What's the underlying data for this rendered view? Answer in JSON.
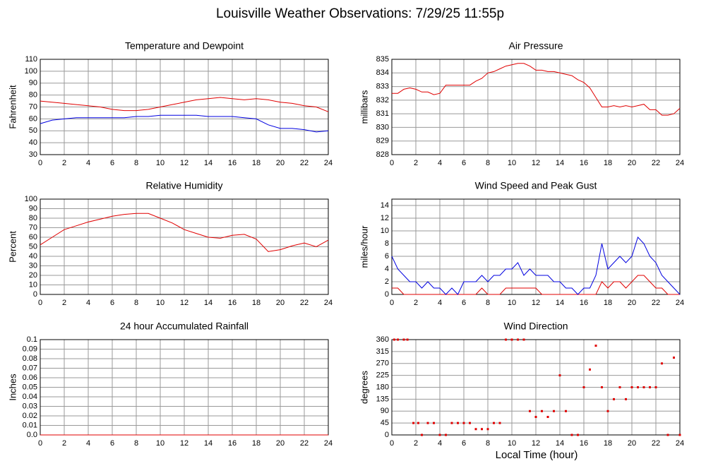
{
  "title": "Louisville Weather Observations: 7/29/25 11:55p",
  "x_label": "Local Time (hour)",
  "chart_data": [
    {
      "type": "line",
      "title": "Temperature and Dewpoint",
      "y_label": "Fahrenheit",
      "x": [
        0,
        1,
        2,
        3,
        4,
        5,
        6,
        7,
        8,
        9,
        10,
        11,
        12,
        13,
        14,
        15,
        16,
        17,
        18,
        19,
        20,
        21,
        22,
        23,
        24
      ],
      "series": [
        {
          "color": "#e00000",
          "values": [
            75,
            74,
            73,
            72,
            71,
            70,
            68,
            67,
            67,
            68,
            70,
            72,
            74,
            76,
            77,
            78,
            77,
            76,
            77,
            76,
            74,
            73,
            71,
            70,
            66
          ]
        },
        {
          "color": "#0000e0",
          "values": [
            56,
            59,
            60,
            61,
            61,
            61,
            61,
            61,
            62,
            62,
            63,
            63,
            63,
            63,
            62,
            62,
            62,
            61,
            60,
            55,
            52,
            52,
            51,
            49,
            50
          ]
        }
      ],
      "xlim": [
        0,
        24
      ],
      "xticks": [
        0,
        2,
        4,
        6,
        8,
        10,
        12,
        14,
        16,
        18,
        20,
        22,
        24
      ],
      "ylim": [
        30,
        110
      ],
      "yticks": [
        30,
        40,
        50,
        60,
        70,
        80,
        90,
        100,
        110
      ],
      "grid": true
    },
    {
      "type": "line",
      "title": "Air Pressure",
      "y_label": "millibars",
      "x": [
        0,
        0.5,
        1,
        1.5,
        2,
        2.5,
        3,
        3.5,
        4,
        4.5,
        5,
        5.5,
        6,
        6.5,
        7,
        7.5,
        8,
        8.5,
        9,
        9.5,
        10,
        10.5,
        11,
        11.5,
        12,
        12.5,
        13,
        13.5,
        14,
        14.5,
        15,
        15.5,
        16,
        16.5,
        17,
        17.5,
        18,
        18.5,
        19,
        19.5,
        20,
        20.5,
        21,
        21.5,
        22,
        22.5,
        23,
        23.5,
        24
      ],
      "series": [
        {
          "color": "#e00000",
          "values": [
            832.5,
            832.5,
            832.8,
            832.9,
            832.8,
            832.6,
            832.6,
            832.4,
            832.5,
            833.1,
            833.1,
            833.1,
            833.1,
            833.1,
            833.4,
            833.6,
            834.0,
            834.1,
            834.3,
            834.5,
            834.6,
            834.7,
            834.7,
            834.5,
            834.2,
            834.2,
            834.1,
            834.1,
            834.0,
            833.9,
            833.8,
            833.5,
            833.3,
            832.9,
            832.2,
            831.5,
            831.5,
            831.6,
            831.5,
            831.6,
            831.5,
            831.6,
            831.7,
            831.3,
            831.3,
            830.9,
            830.9,
            831.0,
            831.4
          ]
        }
      ],
      "xlim": [
        0,
        24
      ],
      "xticks": [
        0,
        2,
        4,
        6,
        8,
        10,
        12,
        14,
        16,
        18,
        20,
        22,
        24
      ],
      "ylim": [
        828,
        835
      ],
      "yticks": [
        828,
        829,
        830,
        831,
        832,
        833,
        834,
        835
      ],
      "grid": true
    },
    {
      "type": "line",
      "title": "Relative Humidity",
      "y_label": "Percent",
      "x": [
        0,
        1,
        2,
        3,
        4,
        5,
        6,
        7,
        8,
        9,
        10,
        11,
        12,
        13,
        14,
        15,
        16,
        17,
        18,
        19,
        20,
        21,
        22,
        23,
        24
      ],
      "series": [
        {
          "color": "#e00000",
          "values": [
            52,
            60,
            68,
            72,
            76,
            79,
            82,
            84,
            85,
            85,
            80,
            75,
            68,
            64,
            60,
            59,
            62,
            63,
            58,
            45,
            47,
            51,
            54,
            50,
            57
          ]
        }
      ],
      "xlim": [
        0,
        24
      ],
      "xticks": [
        0,
        2,
        4,
        6,
        8,
        10,
        12,
        14,
        16,
        18,
        20,
        22,
        24
      ],
      "ylim": [
        0,
        100
      ],
      "yticks": [
        0,
        10,
        20,
        30,
        40,
        50,
        60,
        70,
        80,
        90,
        100
      ],
      "grid": true
    },
    {
      "type": "line",
      "title": "Wind Speed and Peak Gust",
      "y_label": "miles/hour",
      "x": [
        0,
        0.5,
        1,
        1.5,
        2,
        2.5,
        3,
        3.5,
        4,
        4.5,
        5,
        5.5,
        6,
        6.5,
        7,
        7.5,
        8,
        8.5,
        9,
        9.5,
        10,
        10.5,
        11,
        11.5,
        12,
        12.5,
        13,
        13.5,
        14,
        14.5,
        15,
        15.5,
        16,
        16.5,
        17,
        17.5,
        18,
        18.5,
        19,
        19.5,
        20,
        20.5,
        21,
        21.5,
        22,
        22.5,
        23,
        23.5,
        24
      ],
      "series": [
        {
          "color": "#e00000",
          "values": [
            1,
            1,
            0,
            0,
            0,
            0,
            0,
            0,
            0,
            0,
            0,
            0,
            0,
            0,
            0,
            1,
            0,
            0,
            0,
            1,
            1,
            1,
            1,
            1,
            1,
            0,
            0,
            0,
            0,
            0,
            0,
            0,
            0,
            0,
            0,
            2,
            1,
            2,
            2,
            1,
            2,
            3,
            3,
            2,
            1,
            1,
            0,
            0,
            0
          ]
        },
        {
          "color": "#0000e0",
          "values": [
            6,
            4,
            3,
            2,
            2,
            1,
            2,
            1,
            1,
            0,
            1,
            0,
            2,
            2,
            2,
            3,
            2,
            3,
            3,
            4,
            4,
            5,
            3,
            4,
            3,
            3,
            3,
            2,
            2,
            1,
            1,
            0,
            1,
            1,
            3,
            8,
            4,
            5,
            6,
            5,
            6,
            9,
            8,
            6,
            5,
            3,
            2,
            1,
            0
          ]
        }
      ],
      "xlim": [
        0,
        24
      ],
      "xticks": [
        0,
        2,
        4,
        6,
        8,
        10,
        12,
        14,
        16,
        18,
        20,
        22,
        24
      ],
      "ylim": [
        0,
        15
      ],
      "yticks": [
        0,
        2,
        4,
        6,
        8,
        10,
        12,
        14
      ],
      "grid": true
    },
    {
      "type": "line",
      "title": "24 hour Accumulated Rainfall",
      "y_label": "Inches",
      "x": [
        0,
        24
      ],
      "series": [
        {
          "color": "#e00000",
          "values": [
            0,
            0
          ]
        }
      ],
      "xlim": [
        0,
        24
      ],
      "xticks": [
        0,
        2,
        4,
        6,
        8,
        10,
        12,
        14,
        16,
        18,
        20,
        22,
        24
      ],
      "ylim": [
        0,
        0.1
      ],
      "yticks": [
        {
          "value": 0,
          "label": "0.0"
        },
        0.01,
        0.02,
        0.03,
        0.04,
        0.05,
        0.06,
        0.07,
        0.08,
        0.09,
        0.1
      ],
      "grid": true
    },
    {
      "type": "scatter",
      "title": "Wind Direction",
      "y_label": "degrees",
      "x": [
        0.2,
        0.5,
        1.0,
        1.3,
        1.8,
        2.2,
        2.5,
        3,
        3.5,
        4,
        4.5,
        5,
        5.5,
        6,
        6.5,
        7,
        7.5,
        8,
        8.5,
        9,
        9.5,
        10,
        10.5,
        11,
        11.5,
        12,
        12.5,
        13,
        13.5,
        14,
        14.5,
        15,
        15.5,
        16,
        16.5,
        17,
        17.5,
        18,
        18.5,
        19,
        19.5,
        20,
        20.5,
        21,
        21.5,
        22,
        22.5,
        23,
        23.5,
        24
      ],
      "series": [
        {
          "color": "#e00000",
          "values": [
            360,
            360,
            360,
            360,
            45,
            45,
            0,
            45,
            45,
            0,
            0,
            45,
            45,
            45,
            45,
            22,
            22,
            22,
            45,
            45,
            360,
            360,
            360,
            360,
            90,
            68,
            90,
            68,
            90,
            225,
            90,
            0,
            0,
            180,
            247,
            337,
            180,
            90,
            135,
            180,
            135,
            180,
            180,
            180,
            180,
            180,
            270,
            0,
            292,
            0
          ]
        }
      ],
      "xlim": [
        0,
        24
      ],
      "xticks": [
        0,
        2,
        4,
        6,
        8,
        10,
        12,
        14,
        16,
        18,
        20,
        22,
        24
      ],
      "ylim": [
        0,
        360
      ],
      "yticks": [
        0,
        45,
        90,
        135,
        180,
        225,
        270,
        315,
        360
      ],
      "grid": true
    }
  ]
}
